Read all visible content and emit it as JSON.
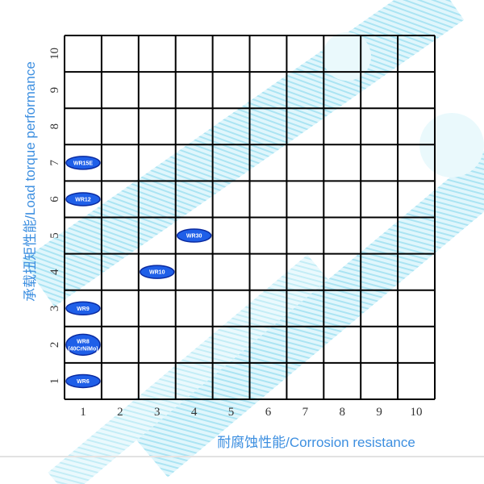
{
  "chart_data": {
    "type": "scatter",
    "title": "",
    "xlabel": "耐腐蚀性能/Corrosion resistance",
    "ylabel": "承载扭矩性能/Load torque performance",
    "xlim": [
      0.5,
      10.5
    ],
    "ylim": [
      0.5,
      10.5
    ],
    "x_ticks": [
      "1",
      "2",
      "3",
      "4",
      "5",
      "6",
      "7",
      "8",
      "9",
      "10"
    ],
    "y_ticks": [
      "1",
      "2",
      "3",
      "4",
      "5",
      "6",
      "7",
      "8",
      "9",
      "10"
    ],
    "grid": true,
    "points": [
      {
        "label": "WR6",
        "x": 1,
        "y": 1
      },
      {
        "label": "WR8",
        "sublabel": "(40CrNiMo)",
        "x": 1,
        "y": 2
      },
      {
        "label": "WR9",
        "x": 1,
        "y": 3
      },
      {
        "label": "WR10",
        "x": 3,
        "y": 4
      },
      {
        "label": "WR30",
        "x": 4,
        "y": 5
      },
      {
        "label": "WR12",
        "x": 1,
        "y": 6
      },
      {
        "label": "WR15E",
        "x": 1,
        "y": 7
      }
    ],
    "colors": {
      "marker_fill": "#1f5fe8",
      "marker_stroke": "#0a2aa0",
      "axis_label": "#3d8fe0",
      "grid": "#000000",
      "background_art": "#9fe3f3"
    }
  }
}
